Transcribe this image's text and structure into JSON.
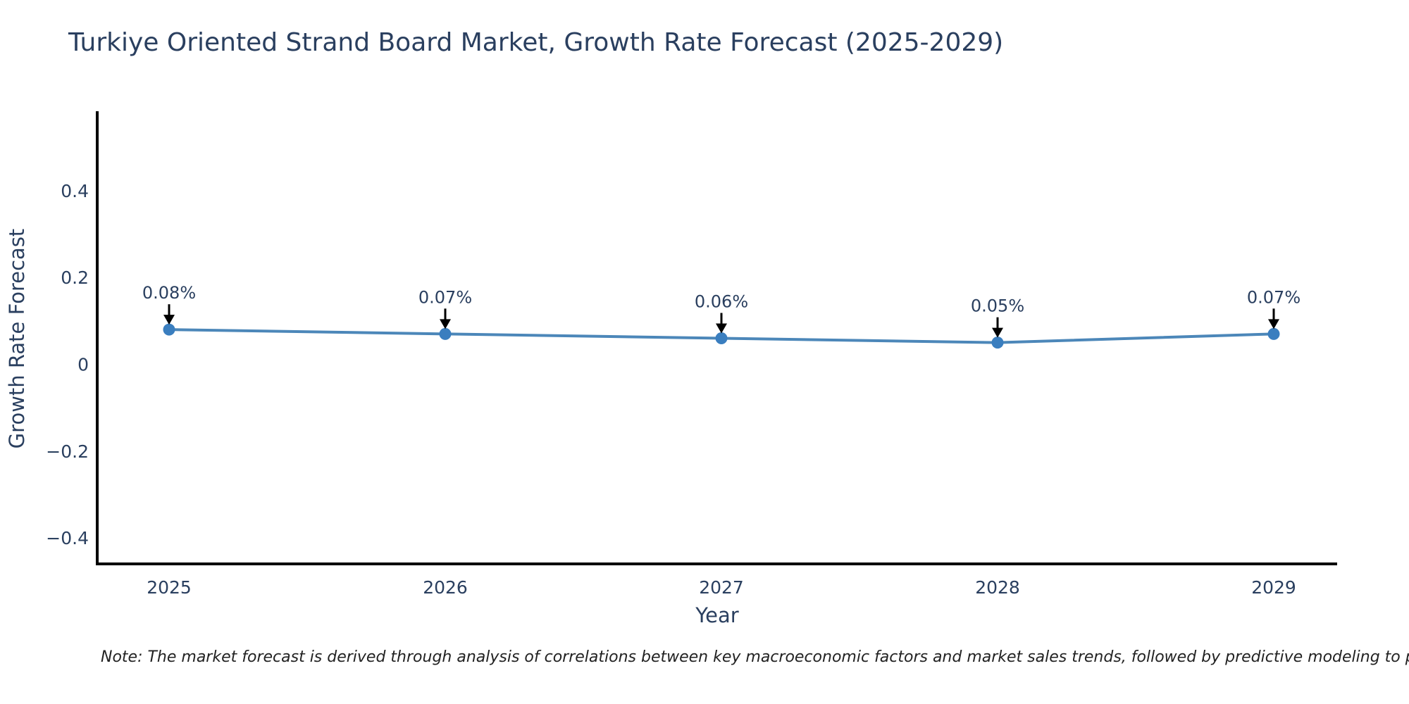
{
  "page": {
    "background": "#ffffff"
  },
  "header": {
    "title": "Turkiye Oriented Strand Board Market, Growth Rate Forecast (2025-2029)",
    "title_color": "#2a3f5f"
  },
  "chart_data": {
    "type": "line",
    "title": "Turkiye Oriented Strand Board Market, Growth Rate Forecast (2025-2029)",
    "x": [
      "2025",
      "2026",
      "2027",
      "2028",
      "2029"
    ],
    "series": [
      {
        "name": "Growth Rate Forecast",
        "values": [
          0.08,
          0.07,
          0.06,
          0.05,
          0.07
        ]
      }
    ],
    "point_labels": [
      "0.08%",
      "0.07%",
      "0.06%",
      "0.05%",
      "0.07%"
    ],
    "xlabel": "Year",
    "ylabel": "Growth Rate Forecast",
    "ytick_labels": [
      "0.4",
      "0.2",
      "0",
      "−0.2",
      "−0.4"
    ],
    "ytick_values": [
      0.4,
      0.2,
      0,
      -0.2,
      -0.4
    ],
    "ylim": [
      -0.46,
      0.58
    ],
    "grid": false,
    "legend": "none",
    "marker_size": 8.5,
    "line_width": 4,
    "colors": {
      "line": "#4c87b9",
      "marker": "#3a7ebf",
      "arrow": "#000000",
      "axis": "#000000",
      "tick_text": "#2a3f5f",
      "annotation_text": "#2a3f5f"
    }
  },
  "footnote": {
    "text": "Note: The market forecast is derived through analysis of correlations between key macroeconomic factors and market sales trends, followed by predictive modeling to project future sales"
  }
}
